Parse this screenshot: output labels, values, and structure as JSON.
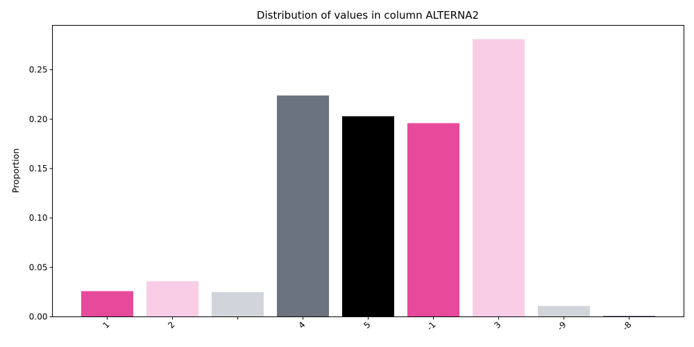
{
  "chart_data": {
    "type": "bar",
    "title": "Distribution of values in column ALTERNA2",
    "xlabel": "",
    "ylabel": "Proportion",
    "categories": [
      "1",
      "2",
      "",
      "4",
      "5",
      "-1",
      "3",
      "-9",
      "-8"
    ],
    "values": [
      0.026,
      0.036,
      0.025,
      0.224,
      0.203,
      0.196,
      0.281,
      0.011,
      0.001
    ],
    "colors": [
      "#e84a9b",
      "#f9cde6",
      "#d1d5db",
      "#6b7280",
      "#000000",
      "#e84a9b",
      "#f9cde6",
      "#d1d5db",
      "#6b7280"
    ],
    "ylim": [
      0,
      0.295
    ],
    "yticks": [
      "0.00",
      "0.05",
      "0.10",
      "0.15",
      "0.20",
      "0.25"
    ],
    "ytick_values": [
      0,
      0.05,
      0.1,
      0.15,
      0.2,
      0.25
    ],
    "grid": false,
    "legend": "none"
  }
}
